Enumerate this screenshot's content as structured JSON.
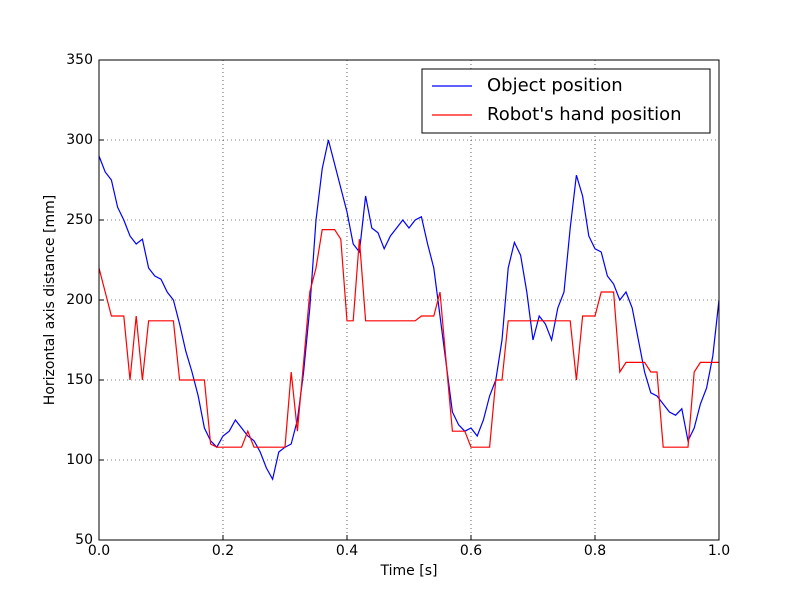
{
  "chart_data": {
    "type": "line",
    "xlabel": "Time [s]",
    "ylabel": "Horizontal axis distance [mm]",
    "x": [
      0,
      0.01,
      0.02,
      0.03,
      0.04,
      0.05,
      0.06,
      0.07,
      0.08,
      0.09,
      0.1,
      0.11,
      0.12,
      0.13,
      0.14,
      0.15,
      0.16,
      0.17,
      0.18,
      0.19,
      0.2,
      0.21,
      0.22,
      0.23,
      0.24,
      0.25,
      0.26,
      0.27,
      0.28,
      0.29,
      0.3,
      0.31,
      0.32,
      0.33,
      0.34,
      0.35,
      0.36,
      0.37,
      0.38,
      0.39,
      0.4,
      0.41,
      0.42,
      0.43,
      0.44,
      0.45,
      0.46,
      0.47,
      0.48,
      0.49,
      0.5,
      0.51,
      0.52,
      0.53,
      0.54,
      0.55,
      0.56,
      0.57,
      0.58,
      0.59,
      0.6,
      0.61,
      0.62,
      0.63,
      0.64,
      0.65,
      0.66,
      0.67,
      0.68,
      0.69,
      0.7,
      0.71,
      0.72,
      0.73,
      0.74,
      0.75,
      0.76,
      0.77,
      0.78,
      0.79,
      0.8,
      0.81,
      0.82,
      0.83,
      0.84,
      0.85,
      0.86,
      0.87,
      0.88,
      0.89,
      0.9,
      0.91,
      0.92,
      0.93,
      0.94,
      0.95,
      0.96,
      0.97,
      0.98,
      0.99,
      1
    ],
    "series": [
      {
        "name": "Object position",
        "color": "#0000ff",
        "values": [
          290,
          280,
          275,
          258,
          250,
          240,
          235,
          238,
          220,
          215,
          213,
          205,
          200,
          185,
          168,
          155,
          140,
          120,
          112,
          108,
          115,
          118,
          125,
          120,
          115,
          112,
          105,
          95,
          88,
          105,
          108,
          110,
          125,
          155,
          195,
          250,
          282,
          300,
          285,
          270,
          255,
          235,
          230,
          265,
          245,
          242,
          232,
          240,
          245,
          250,
          245,
          250,
          252,
          235,
          220,
          190,
          160,
          130,
          122,
          118,
          120,
          115,
          125,
          140,
          150,
          175,
          220,
          236,
          228,
          205,
          175,
          190,
          185,
          175,
          195,
          205,
          245,
          278,
          265,
          240,
          232,
          230,
          215,
          210,
          200,
          205,
          195,
          175,
          155,
          142,
          140,
          135,
          130,
          128,
          132,
          112,
          120,
          135,
          145,
          165,
          200
        ]
      },
      {
        "name": "Robot's hand position",
        "color": "#ff0000",
        "values": [
          220,
          205,
          190,
          190,
          190,
          150,
          190,
          150,
          187,
          187,
          187,
          187,
          187,
          150,
          150,
          150,
          150,
          150,
          110,
          108,
          108,
          108,
          108,
          108,
          118,
          108,
          108,
          108,
          108,
          108,
          108,
          155,
          118,
          161,
          205,
          220,
          244,
          244,
          244,
          238,
          187,
          187,
          238,
          187,
          187,
          187,
          187,
          187,
          187,
          187,
          187,
          187,
          190,
          190,
          190,
          205,
          161,
          118,
          118,
          118,
          108,
          108,
          108,
          108,
          150,
          150,
          187,
          187,
          187,
          187,
          187,
          187,
          187,
          187,
          187,
          187,
          187,
          150,
          190,
          190,
          190,
          205,
          205,
          205,
          155,
          161,
          161,
          161,
          161,
          155,
          155,
          108,
          108,
          108,
          108,
          108,
          155,
          161,
          161,
          161,
          161
        ]
      }
    ],
    "xlim": [
      0,
      1
    ],
    "ylim": [
      50,
      350
    ],
    "xticks": [
      {
        "value": 0,
        "label": "0.0"
      },
      0.2,
      0.4,
      0.6,
      0.8,
      {
        "value": 1,
        "label": "1.0"
      }
    ],
    "yticks": [
      50,
      100,
      150,
      200,
      250,
      300,
      350
    ],
    "grid": true,
    "legend": "upper right"
  }
}
